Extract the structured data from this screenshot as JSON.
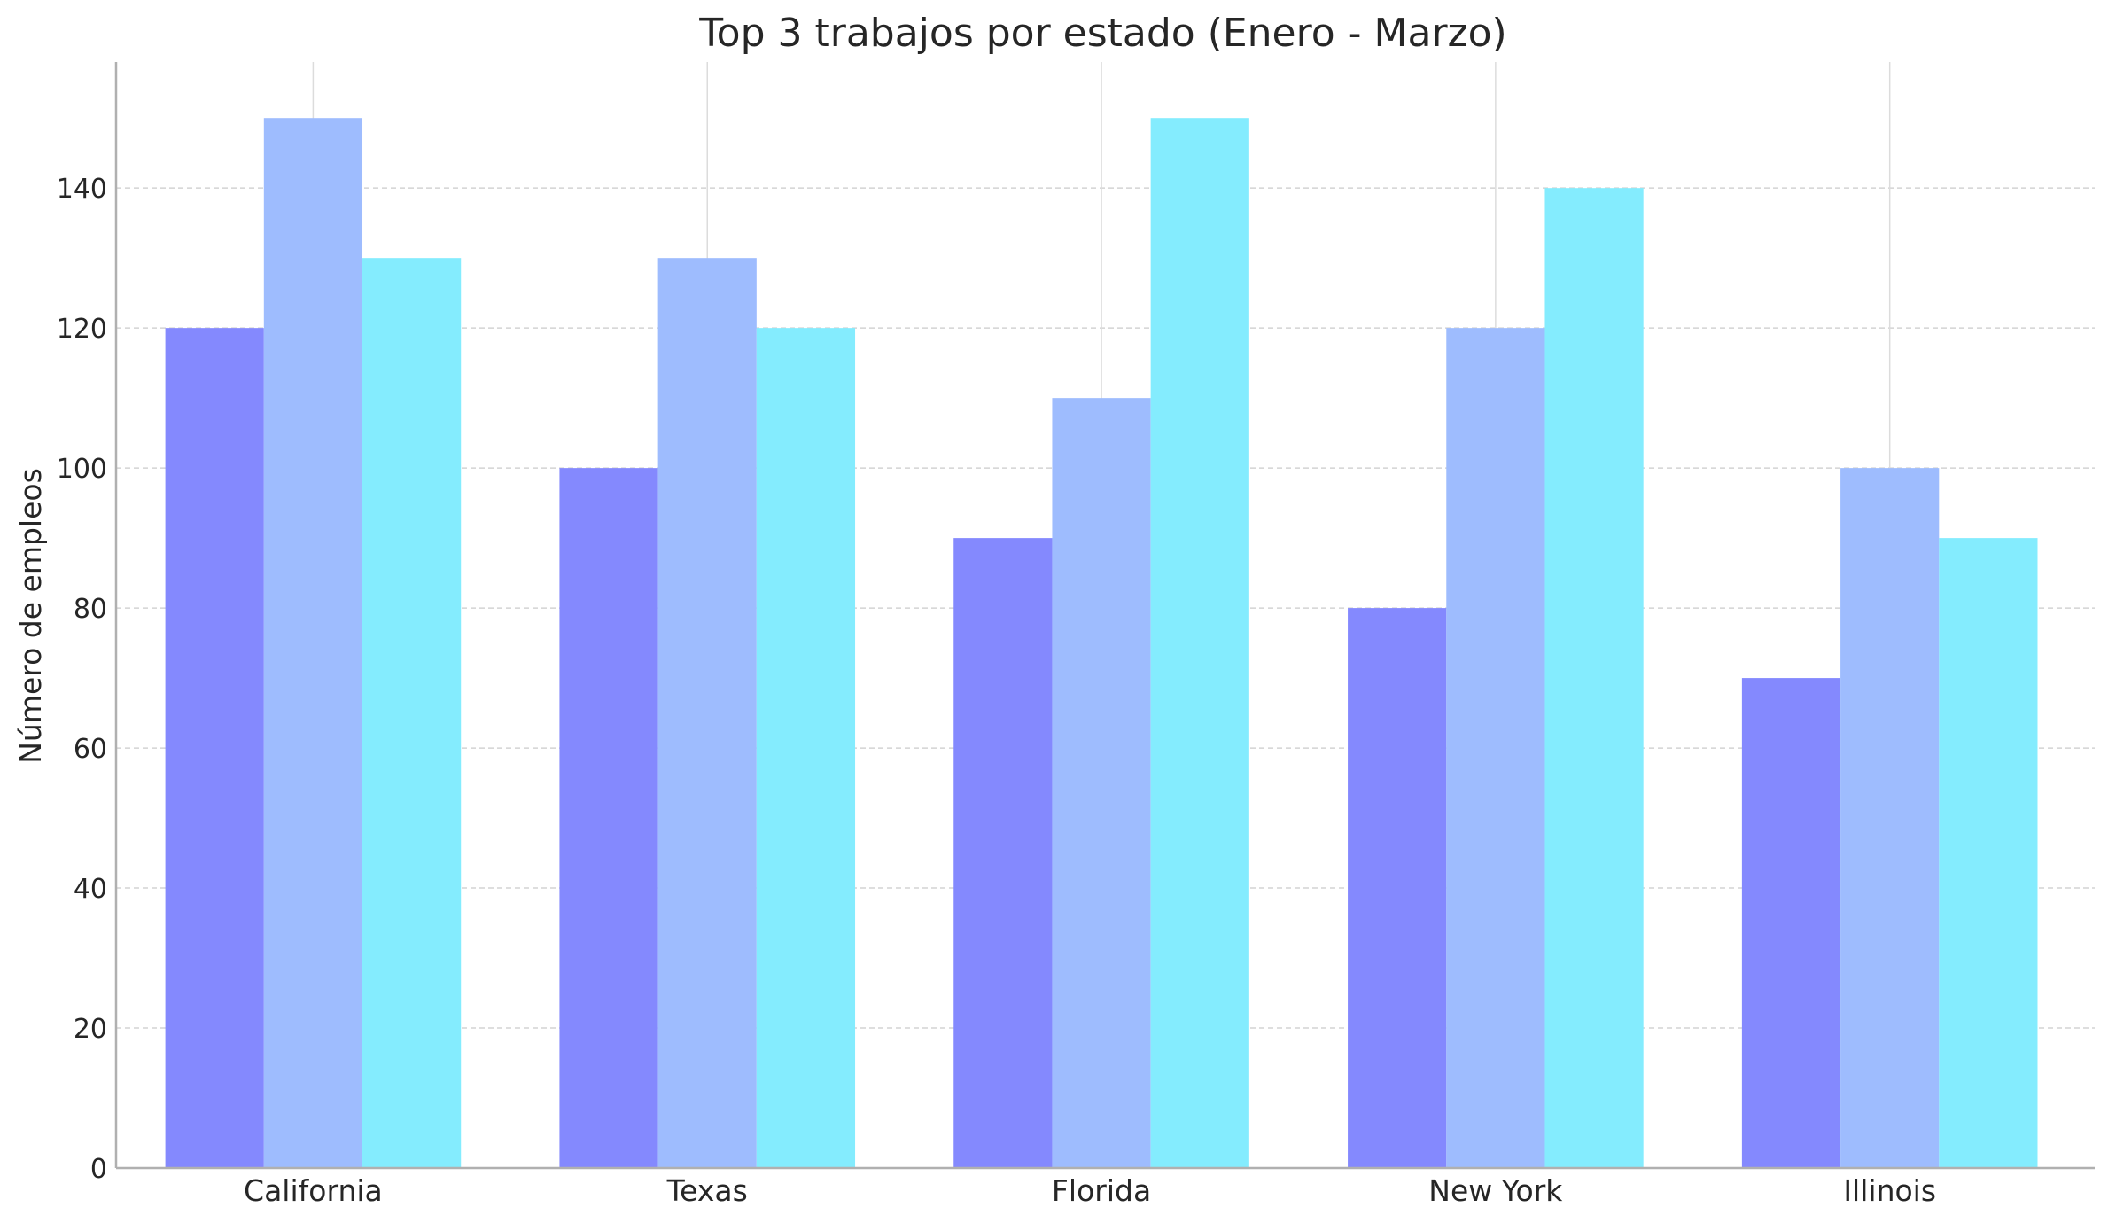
{
  "chart_data": {
    "type": "bar",
    "title": "Top 3 trabajos por estado (Enero - Marzo)",
    "xlabel": "",
    "ylabel": "Número de empleos",
    "categories": [
      "California",
      "Texas",
      "Florida",
      "New York",
      "Illinois"
    ],
    "series": [
      {
        "values": [
          120,
          100,
          90,
          80,
          70
        ],
        "color": "#8489fe"
      },
      {
        "values": [
          150,
          130,
          110,
          120,
          100
        ],
        "color": "#9ebcfe"
      },
      {
        "values": [
          130,
          120,
          150,
          140,
          90
        ],
        "color": "#84ecfe"
      }
    ],
    "ylim": [
      0,
      158
    ],
    "yticks": [
      0,
      20,
      40,
      60,
      80,
      100,
      120,
      140
    ],
    "grid": {
      "horizontal": true,
      "horizontal_style": "dashed",
      "vertical": true
    },
    "legend": "none"
  }
}
